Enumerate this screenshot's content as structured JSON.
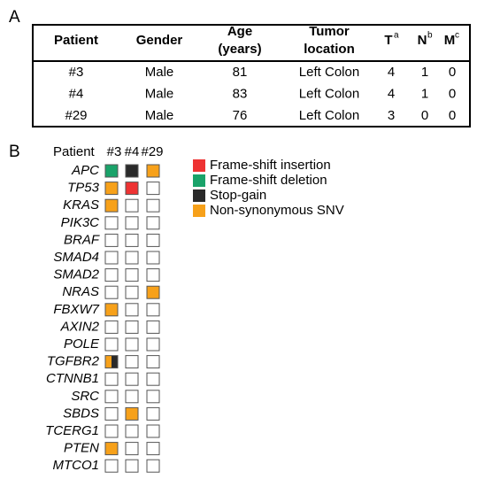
{
  "panel_a": {
    "label": "A",
    "table": {
      "header": [
        {
          "lines": [
            "Patient"
          ]
        },
        {
          "lines": [
            "Gender"
          ]
        },
        {
          "lines": [
            "Age",
            "(years)"
          ]
        },
        {
          "lines": [
            "Tumor",
            "location"
          ]
        },
        {
          "lines": [
            "T"
          ],
          "sup": "a"
        },
        {
          "lines": [
            "N"
          ],
          "sup": "b"
        },
        {
          "lines": [
            "M"
          ],
          "sup": "c"
        }
      ],
      "rows": [
        [
          "#3",
          "Male",
          "81",
          "Left Colon",
          "4",
          "1",
          "0"
        ],
        [
          "#4",
          "Male",
          "83",
          "Left Colon",
          "4",
          "1",
          "0"
        ],
        [
          "#29",
          "Male",
          "76",
          "Left Colon",
          "3",
          "0",
          "0"
        ]
      ]
    }
  },
  "panel_b": {
    "label": "B",
    "column_title": "Patient",
    "patients": [
      "#3",
      "#4",
      "#29"
    ],
    "genes": [
      "APC",
      "TP53",
      "KRAS",
      "PIK3C",
      "BRAF",
      "SMAD4",
      "SMAD2",
      "NRAS",
      "FBXW7",
      "AXIN2",
      "POLE",
      "TGFBR2",
      "CTNNB1",
      "SRC",
      "SBDS",
      "TCERG1",
      "PTEN",
      "MTCO1"
    ],
    "legend": [
      {
        "label": "Frame-shift insertion",
        "color": "#ee3333"
      },
      {
        "label": "Frame-shift deletion",
        "color": "#1aa36a"
      },
      {
        "label": "Stop-gain",
        "color": "#2a2a2a"
      },
      {
        "label": "Non-synonymous SNV",
        "color": "#f7a11a"
      }
    ],
    "mutations": [
      [
        [
          1
        ],
        [
          2
        ],
        [
          3
        ]
      ],
      [
        [
          3
        ],
        [
          0
        ],
        []
      ],
      [
        [
          3
        ],
        [],
        []
      ],
      [
        [],
        [],
        []
      ],
      [
        [],
        [],
        []
      ],
      [
        [],
        [],
        []
      ],
      [
        [],
        [],
        []
      ],
      [
        [],
        [],
        [
          3
        ]
      ],
      [
        [
          3
        ],
        [],
        []
      ],
      [
        [],
        [],
        []
      ],
      [
        [],
        [],
        []
      ],
      [
        [
          3,
          2
        ],
        [],
        []
      ],
      [
        [],
        [],
        []
      ],
      [
        [],
        [],
        []
      ],
      [
        [],
        [
          3
        ],
        []
      ],
      [
        [],
        [],
        []
      ],
      [
        [
          3
        ],
        [],
        []
      ],
      [
        [],
        [],
        []
      ]
    ]
  }
}
